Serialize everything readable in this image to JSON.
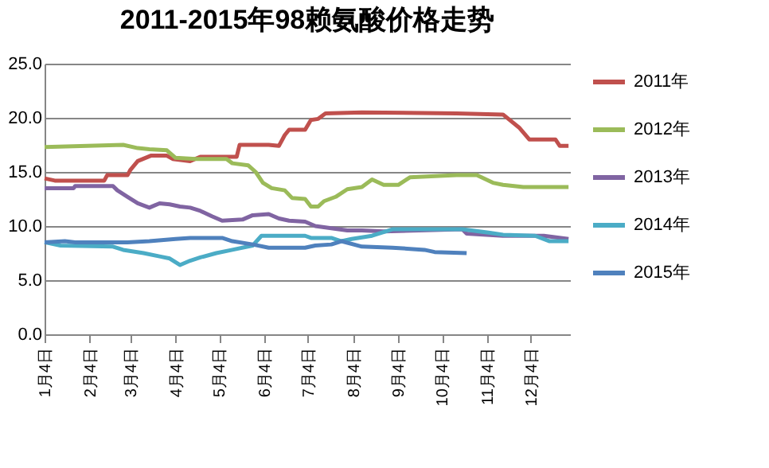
{
  "chart_data": {
    "type": "line",
    "title": "2011-2015年98赖氨酸价格走势",
    "xlim": [
      "--01-04",
      "--12-31"
    ],
    "xticks": [
      {
        "value": "--01-04",
        "label": "1月4日"
      },
      {
        "value": "--02-04",
        "label": "2月4日"
      },
      {
        "value": "--03-04",
        "label": "3月4日"
      },
      {
        "value": "--04-04",
        "label": "4月4日"
      },
      {
        "value": "--05-04",
        "label": "5月4日"
      },
      {
        "value": "--06-04",
        "label": "6月4日"
      },
      {
        "value": "--07-04",
        "label": "7月4日"
      },
      {
        "value": "--08-04",
        "label": "8月4日"
      },
      {
        "value": "--09-04",
        "label": "9月4日"
      },
      {
        "value": "--10-04",
        "label": "10月4日"
      },
      {
        "value": "--11-04",
        "label": "11月4日"
      },
      {
        "value": "--12-04",
        "label": "12月4日"
      }
    ],
    "ylim": [
      0,
      25
    ],
    "yticks": [
      {
        "value": 0,
        "label": "0.0"
      },
      {
        "value": 5,
        "label": "5.0"
      },
      {
        "value": 10,
        "label": "10.0"
      },
      {
        "value": 15,
        "label": "15.0"
      },
      {
        "value": 20,
        "label": "20.0"
      },
      {
        "value": 25,
        "label": "25.0"
      }
    ],
    "grid": "y",
    "legend": "right",
    "series": [
      {
        "name": "2011年",
        "color": "#c0504d",
        "x": [
          "--01-04",
          "--01-11",
          "--02-14",
          "--02-16",
          "--03-02",
          "--03-04",
          "--03-09",
          "--03-18",
          "--03-29",
          "--04-02",
          "--04-14",
          "--04-21",
          "--05-16",
          "--05-18",
          "--06-07",
          "--06-14",
          "--06-18",
          "--06-21",
          "--07-02",
          "--07-06",
          "--07-11",
          "--07-16",
          "--08-10",
          "--10-14",
          "--11-15",
          "--11-26",
          "--12-03",
          "--12-21",
          "--12-24",
          "--12-30"
        ],
        "values": [
          14.4,
          14.2,
          14.2,
          14.7,
          14.7,
          15.2,
          16.0,
          16.5,
          16.5,
          16.2,
          16.0,
          16.4,
          16.4,
          17.5,
          17.5,
          17.4,
          18.4,
          18.9,
          18.9,
          19.8,
          19.9,
          20.4,
          20.5,
          20.4,
          20.3,
          19.1,
          18.0,
          18.0,
          17.4,
          17.4
        ]
      },
      {
        "name": "2012年",
        "color": "#9bbb59",
        "x": [
          "--01-04",
          "--02-27",
          "--03-09",
          "--03-17",
          "--03-29",
          "--04-04",
          "--04-18",
          "--05-09",
          "--05-13",
          "--05-24",
          "--05-29",
          "--06-03",
          "--06-09",
          "--06-18",
          "--06-23",
          "--07-02",
          "--07-06",
          "--07-11",
          "--07-15",
          "--07-23",
          "--07-31",
          "--08-10",
          "--08-17",
          "--08-25",
          "--09-04",
          "--09-12",
          "--10-14",
          "--10-28",
          "--11-08",
          "--11-15",
          "--11-29",
          "--12-30"
        ],
        "values": [
          17.3,
          17.5,
          17.2,
          17.1,
          17.0,
          16.3,
          16.2,
          16.2,
          15.8,
          15.6,
          15.0,
          14.0,
          13.5,
          13.3,
          12.6,
          12.5,
          11.8,
          11.8,
          12.3,
          12.7,
          13.4,
          13.6,
          14.3,
          13.8,
          13.8,
          14.5,
          14.7,
          14.7,
          14.0,
          13.8,
          13.6,
          13.6
        ]
      },
      {
        "name": "2013年",
        "color": "#8064a2",
        "x": [
          "--01-04",
          "--01-24",
          "--01-25",
          "--02-20",
          "--02-23",
          "--03-02",
          "--03-09",
          "--03-17",
          "--03-24",
          "--03-31",
          "--04-07",
          "--04-14",
          "--04-21",
          "--04-29",
          "--05-06",
          "--05-20",
          "--05-27",
          "--06-07",
          "--06-14",
          "--06-21",
          "--07-02",
          "--07-09",
          "--07-20",
          "--07-31",
          "--08-10",
          "--08-25",
          "--10-18",
          "--10-21",
          "--11-15",
          "--12-13",
          "--12-30"
        ],
        "values": [
          13.5,
          13.5,
          13.7,
          13.7,
          13.3,
          12.7,
          12.1,
          11.7,
          12.1,
          12.0,
          11.8,
          11.7,
          11.4,
          10.9,
          10.5,
          10.6,
          11.0,
          11.1,
          10.7,
          10.5,
          10.4,
          10.0,
          9.8,
          9.6,
          9.6,
          9.5,
          9.7,
          9.3,
          9.1,
          9.1,
          8.8
        ]
      },
      {
        "name": "2014年",
        "color": "#4bacc6",
        "x": [
          "--01-04",
          "--01-15",
          "--02-20",
          "--02-27",
          "--03-13",
          "--03-24",
          "--03-31",
          "--04-07",
          "--04-14",
          "--04-21",
          "--05-02",
          "--05-13",
          "--05-27",
          "--06-02",
          "--07-02",
          "--07-06",
          "--07-20",
          "--07-27",
          "--08-03",
          "--08-17",
          "--08-31",
          "--10-18",
          "--11-05",
          "--11-15",
          "--12-07",
          "--12-17",
          "--12-30"
        ],
        "values": [
          8.5,
          8.2,
          8.1,
          7.8,
          7.5,
          7.2,
          7.0,
          6.4,
          6.8,
          7.1,
          7.5,
          7.8,
          8.2,
          9.1,
          9.1,
          8.9,
          8.9,
          8.6,
          8.8,
          9.1,
          9.7,
          9.7,
          9.4,
          9.2,
          9.1,
          8.6,
          8.6
        ]
      },
      {
        "name": "2015年",
        "color": "#4f81bd",
        "x": [
          "--01-04",
          "--01-18",
          "--01-25",
          "--03-02",
          "--03-17",
          "--04-04",
          "--04-14",
          "--05-06",
          "--05-13",
          "--05-27",
          "--06-07",
          "--07-02",
          "--07-09",
          "--07-20",
          "--07-27",
          "--08-10",
          "--08-31",
          "--09-22",
          "--09-29",
          "--10-21"
        ],
        "values": [
          8.5,
          8.6,
          8.5,
          8.5,
          8.6,
          8.8,
          8.9,
          8.9,
          8.6,
          8.3,
          8.0,
          8.0,
          8.2,
          8.3,
          8.6,
          8.1,
          8.0,
          7.8,
          7.6,
          7.5
        ]
      }
    ]
  }
}
